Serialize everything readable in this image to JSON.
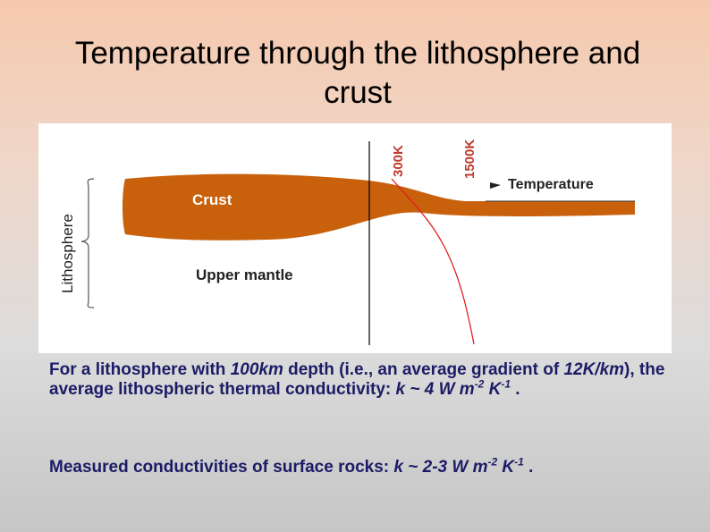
{
  "header": {
    "title": "Temperature through the lithosphere and crust"
  },
  "figure": {
    "labels": {
      "t300": "300K",
      "t1500": "1500K",
      "temperature": "Temperature",
      "crust": "Crust",
      "lithosphere": "Lithosphere",
      "mantle": "Upper mantle"
    }
  },
  "body": {
    "paragraphs": [
      [
        "For a lithosphere with ",
        "100km",
        " depth (i.e., an average gradient of ",
        "12K/km",
        "),  the average lithospheric thermal conductivity: ",
        "k ~ 4 W m",
        "-2",
        " K",
        "-1",
        " ."
      ],
      [
        "Measured conductivities of surface rocks: ",
        "k ~ 2-3 W m",
        "-2",
        " K",
        "-1",
        " ."
      ]
    ]
  }
}
